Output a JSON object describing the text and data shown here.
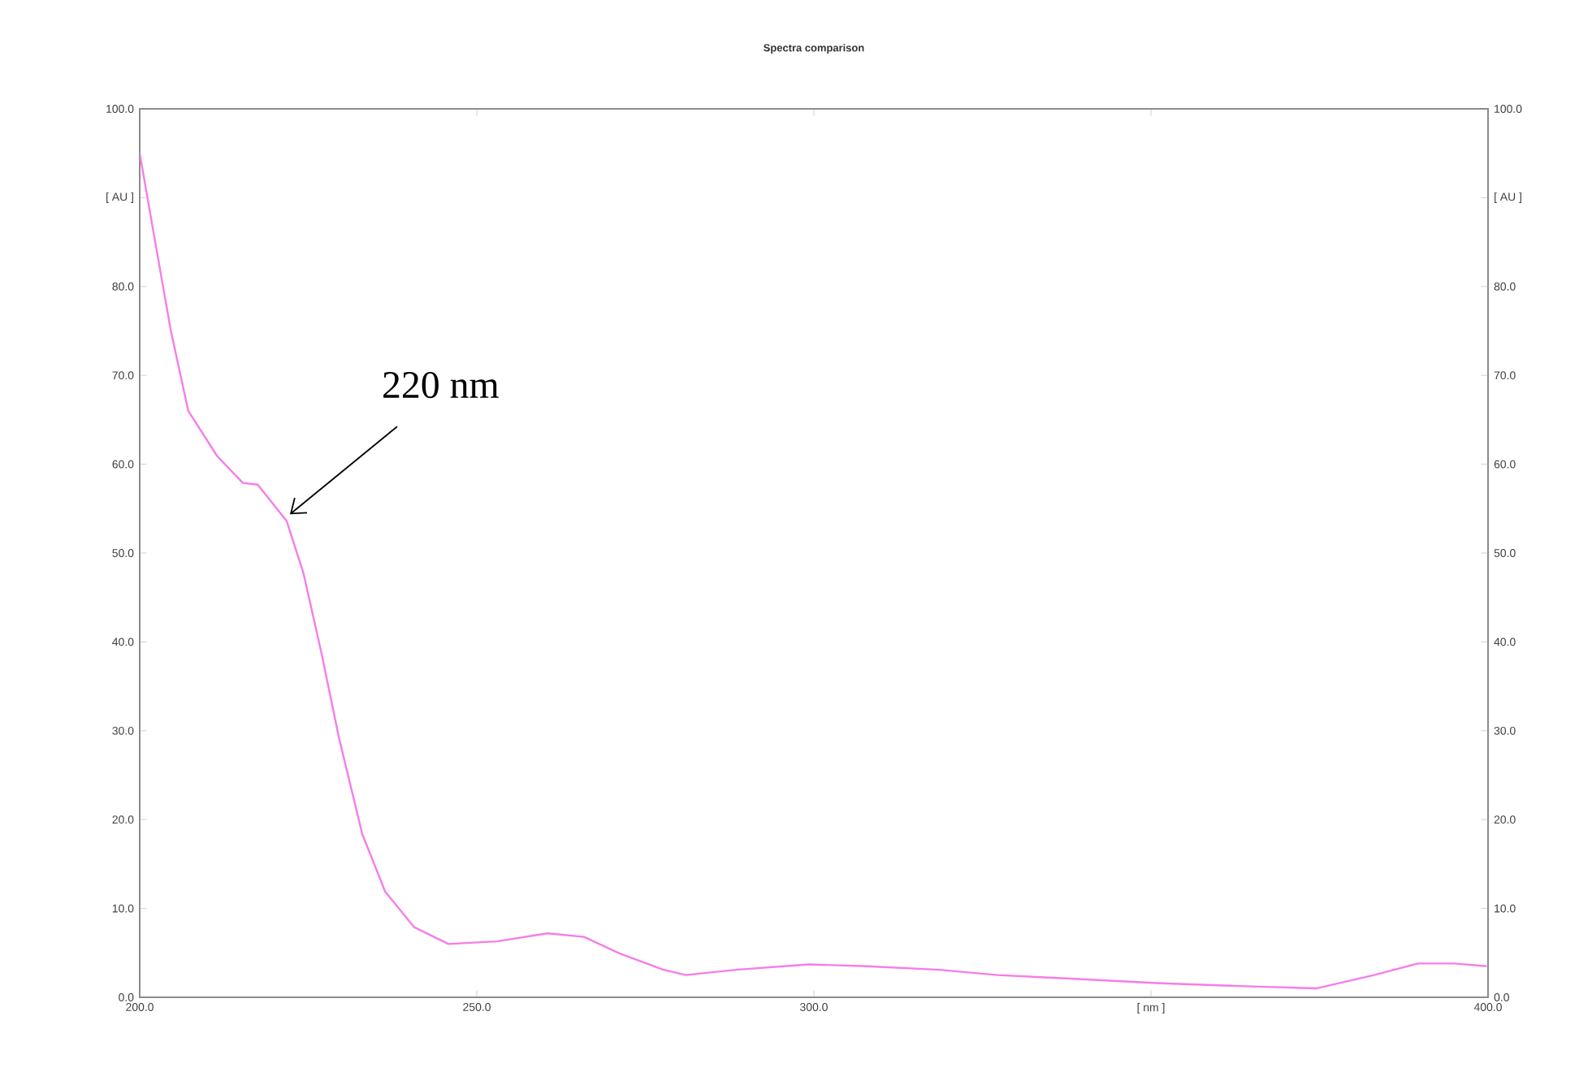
{
  "chart_data": {
    "type": "line",
    "title": "Spectra comparison",
    "x": [
      200,
      202,
      204.6,
      207.2,
      211.5,
      215.3,
      217.5,
      221.8,
      224.3,
      227,
      229.5,
      233,
      236.4,
      240.7,
      245.8,
      253,
      260.5,
      265.9,
      271.3,
      277.7,
      281,
      288.4,
      299.3,
      307.8,
      318.6,
      327.2,
      338,
      350.8,
      361.6,
      374.5,
      383.1,
      389.6,
      395,
      399.8
    ],
    "series": [
      {
        "color": "#f77ce8",
        "values": [
          95.0,
          86.3,
          75.1,
          66.0,
          60.9,
          57.9,
          57.7,
          53.6,
          47.7,
          38.6,
          29.4,
          18.4,
          11.9,
          7.9,
          6.0,
          6.3,
          7.2,
          6.8,
          4.9,
          3.1,
          2.5,
          3.1,
          3.7,
          3.5,
          3.1,
          2.5,
          2.1,
          1.6,
          1.3,
          1.0,
          2.5,
          3.8,
          3.8,
          3.5
        ]
      }
    ],
    "xlim": [
      200,
      400
    ],
    "xticks": [
      {
        "value": 200,
        "label": "200.0"
      },
      {
        "value": 250,
        "label": "250.0"
      },
      {
        "value": 300,
        "label": "300.0"
      },
      {
        "value": 350,
        "label": "[ nm ]"
      },
      {
        "value": 400,
        "label": "400.0"
      }
    ],
    "ylim": [
      0,
      100
    ],
    "yticks": [
      {
        "value": 0,
        "label": "0.0"
      },
      {
        "value": 10,
        "label": "10.0"
      },
      {
        "value": 20,
        "label": "20.0"
      },
      {
        "value": 30,
        "label": "30.0"
      },
      {
        "value": 40,
        "label": "40.0"
      },
      {
        "value": 50,
        "label": "50.0"
      },
      {
        "value": 60,
        "label": "60.0"
      },
      {
        "value": 70,
        "label": "70.0"
      },
      {
        "value": 80,
        "label": "80.0"
      },
      {
        "value": 90,
        "label": "[ AU ]"
      },
      {
        "value": 100,
        "label": "100.0"
      }
    ],
    "y2lim": [
      0,
      100
    ],
    "y2ticks": [
      {
        "value": 0,
        "label": "0.0"
      },
      {
        "value": 10,
        "label": "10.0"
      },
      {
        "value": 20,
        "label": "20.0"
      },
      {
        "value": 30,
        "label": "30.0"
      },
      {
        "value": 40,
        "label": "40.0"
      },
      {
        "value": 50,
        "label": "50.0"
      },
      {
        "value": 60,
        "label": "60.0"
      },
      {
        "value": 70,
        "label": "70.0"
      },
      {
        "value": 80,
        "label": "80.0"
      },
      {
        "value": 90,
        "label": "[ AU ]"
      },
      {
        "value": 100,
        "label": "100.0"
      }
    ],
    "annotations": [
      {
        "text": "220 nm",
        "x": 221.8,
        "y": 54
      }
    ],
    "marker": "none",
    "line_style": "solid",
    "grid": false
  }
}
